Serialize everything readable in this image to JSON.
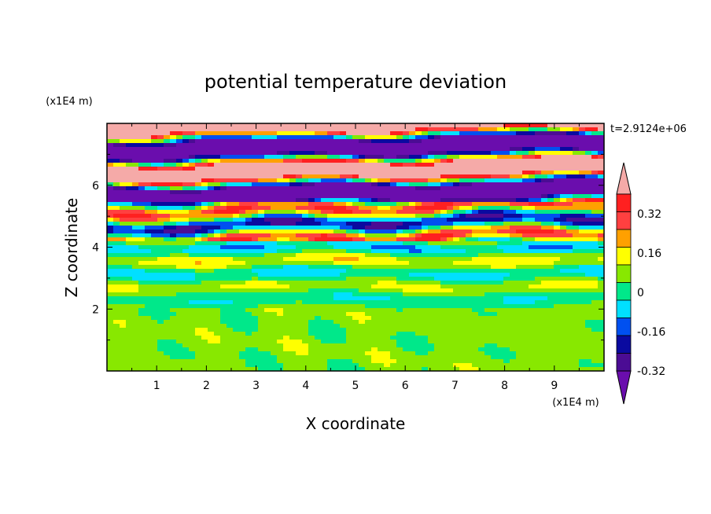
{
  "chart_data": {
    "type": "heatmap",
    "title": "potential temperature deviation",
    "xlabel": "X coordinate",
    "ylabel": "Z coordinate",
    "x_unit": "(x1E4 m)",
    "y_unit": "(x1E4 m)",
    "time_label": "t=2.9124e+06",
    "xlim": [
      0,
      10
    ],
    "ylim": [
      0,
      8
    ],
    "x_ticks": [
      "1",
      "2",
      "3",
      "4",
      "5",
      "6",
      "7",
      "8",
      "9"
    ],
    "y_ticks": [
      "2",
      "4",
      "6"
    ],
    "colorbar": {
      "labels": [
        "0.32",
        "0.16",
        "0",
        "-0.16",
        "-0.32"
      ],
      "label_values": [
        0.32,
        0.16,
        0,
        -0.16,
        -0.32
      ],
      "levels": [
        -0.4,
        -0.32,
        -0.24,
        -0.16,
        -0.08,
        0,
        0.08,
        0.16,
        0.24,
        0.32,
        0.4
      ],
      "colors": [
        "#6a0dad",
        "#4b0c94",
        "#0a0aa0",
        "#0050f0",
        "#00e0ff",
        "#00e88a",
        "#88e800",
        "#ffff00",
        "#ffa000",
        "#ff4040",
        "#ff2020",
        "#f5aaa8"
      ]
    },
    "field_description_rows": [
      {
        "z_range": [
          0,
          2
        ],
        "dominant": "0 to 0.08"
      },
      {
        "z_range": [
          2,
          4
        ],
        "dominant": "-0.08 to 0.16"
      },
      {
        "z_range": [
          4,
          5.5
        ],
        "dominant": "-0.32 to 0.32"
      },
      {
        "z_range": [
          5.5,
          8
        ],
        "dominant": "alternating >0.4 and < -0.4"
      }
    ]
  }
}
